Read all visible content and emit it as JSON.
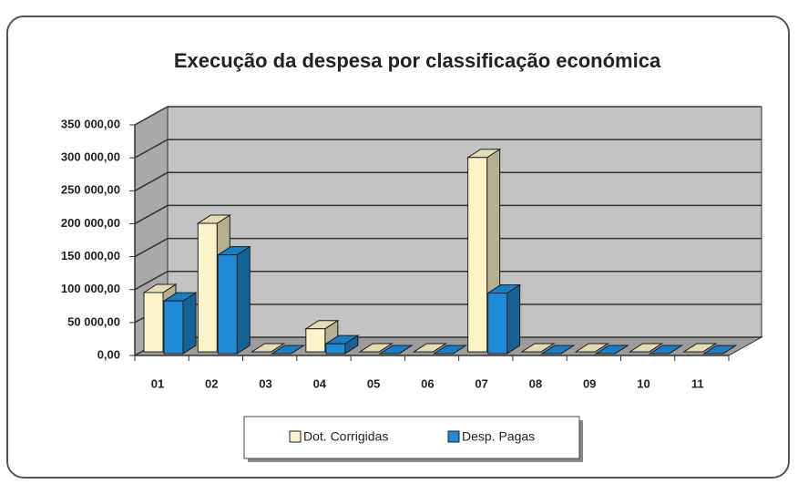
{
  "chart_data": {
    "type": "bar3d",
    "title": "Execução da despesa por classificação económica",
    "categories": [
      "01",
      "02",
      "03",
      "04",
      "05",
      "06",
      "07",
      "08",
      "09",
      "10",
      "11"
    ],
    "series": [
      {
        "name": "Dot. Corrigidas",
        "color": "#fcf4c8",
        "values": [
          90000,
          195000,
          0,
          35000,
          0,
          0,
          295000,
          0,
          0,
          0,
          0
        ]
      },
      {
        "name": "Desp. Pagas",
        "color": "#1f8ad6",
        "values": [
          80000,
          150000,
          0,
          15000,
          0,
          0,
          92000,
          0,
          0,
          0,
          0
        ]
      }
    ],
    "ylim": [
      0,
      350000
    ],
    "yticks": [
      {
        "value": 0,
        "label": "0,00"
      },
      {
        "value": 50000,
        "label": "50 000,00"
      },
      {
        "value": 100000,
        "label": "100 000,00"
      },
      {
        "value": 150000,
        "label": "150 000,00"
      },
      {
        "value": 200000,
        "label": "200 000,00"
      },
      {
        "value": 250000,
        "label": "250 000,00"
      },
      {
        "value": 300000,
        "label": "300 000,00"
      },
      {
        "value": 350000,
        "label": "350 000,00"
      }
    ],
    "grid": true,
    "legend": "bottom"
  }
}
